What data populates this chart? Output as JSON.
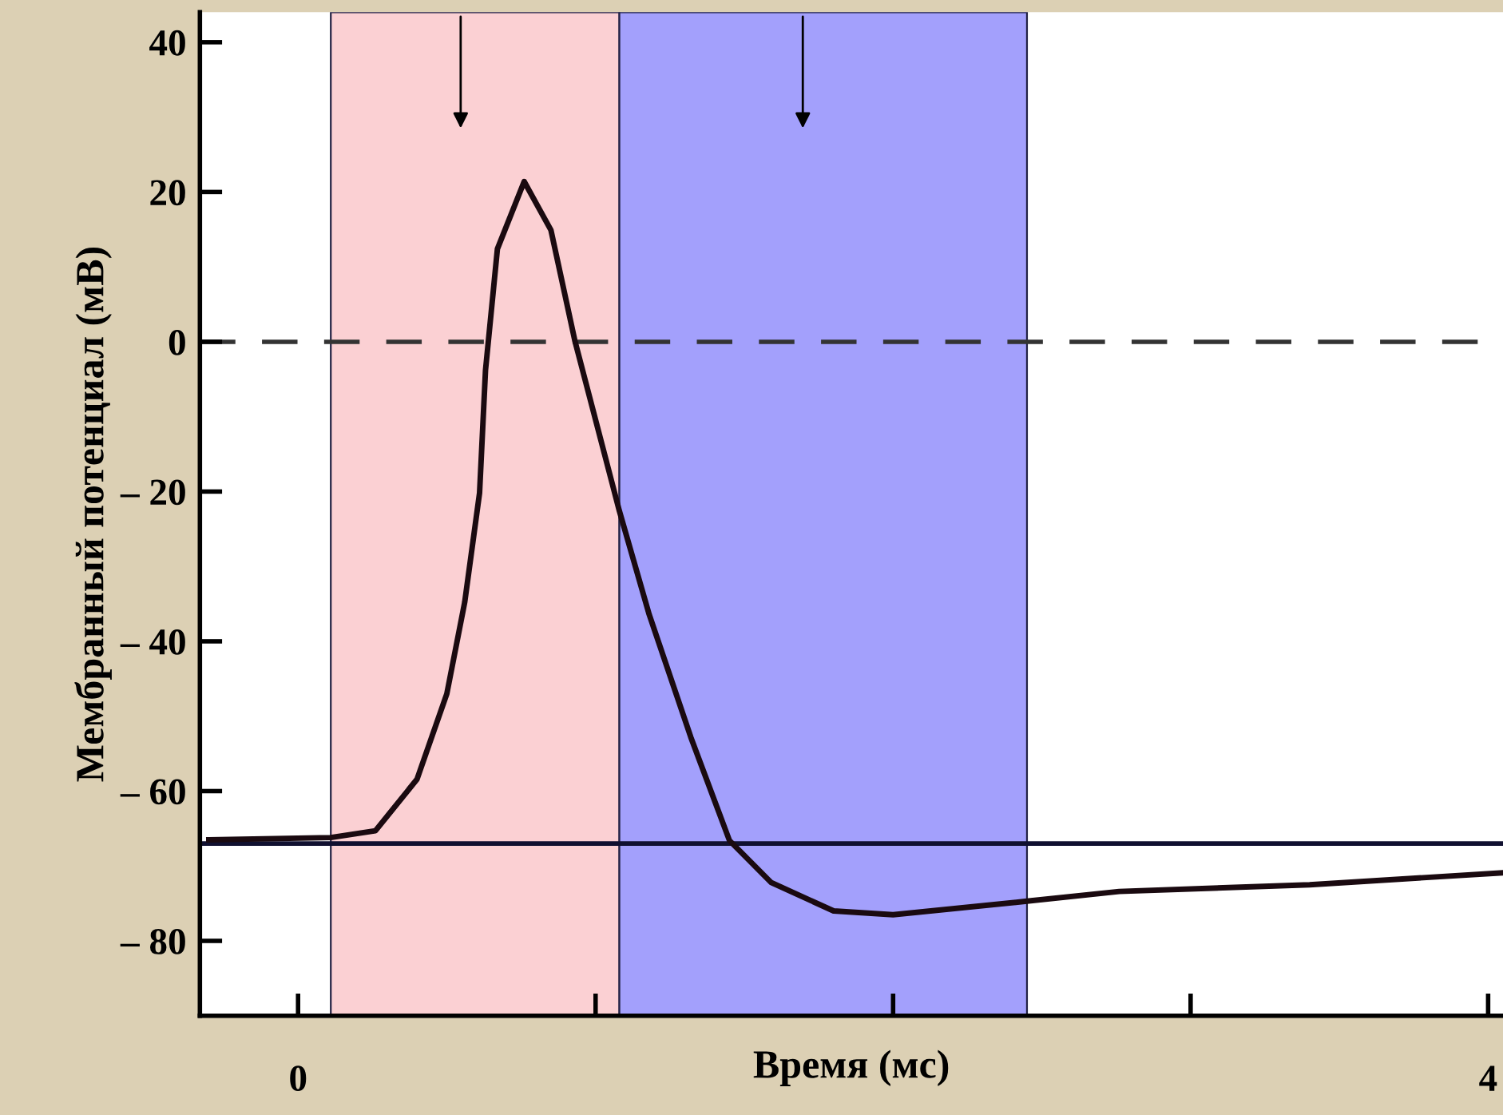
{
  "chart_data": {
    "type": "line",
    "xlabel": "Время (мс)",
    "ylabel": "Мембранный потенциал (мВ)",
    "xlim": [
      -0.33,
      4.05
    ],
    "ylim": [
      -90,
      44
    ],
    "xticks": [
      0,
      {
        "value": 1,
        "label": null
      },
      {
        "value": 2,
        "label": null
      },
      {
        "value": 3,
        "label": null
      },
      4
    ],
    "yticks": [
      40,
      20,
      0,
      {
        "value": -20,
        "label": "– 20"
      },
      {
        "value": -40,
        "label": "– 40"
      },
      {
        "value": -60,
        "label": "– 60"
      },
      {
        "value": -80,
        "label": "– 80"
      }
    ],
    "bands": [
      {
        "axis": "x",
        "from": 0.11,
        "to": 1.08,
        "color": "#fbd0d3"
      },
      {
        "axis": "x",
        "from": 1.08,
        "to": 2.45,
        "color": "#a3a0fc"
      }
    ],
    "ref_lines": [
      {
        "axis": "y",
        "value": 0,
        "color": "#333333",
        "line_style": "dashed"
      },
      {
        "axis": "y",
        "value": -67,
        "color": "#101030",
        "line_style": "solid"
      }
    ],
    "series": [
      {
        "color": "#1a0a10",
        "x": [
          -0.3,
          0.11,
          0.26,
          0.4,
          0.5,
          0.56,
          0.61,
          0.63,
          0.67,
          0.76,
          0.85,
          0.93,
          1.08,
          1.18,
          1.32,
          1.45,
          1.59,
          1.8,
          2.0,
          2.45,
          2.76,
          3.4,
          4.05
        ],
        "values": [
          -66.5,
          -66.2,
          -65.3,
          -58.4,
          -47,
          -34.8,
          -20.2,
          -3.8,
          12.4,
          21.4,
          14.9,
          0.2,
          -22.6,
          -36.4,
          -52.8,
          -66.6,
          -72.2,
          -76,
          -76.5,
          -74.7,
          -73.4,
          -72.5,
          -70.9
        ]
      }
    ],
    "grid": false,
    "legend": false,
    "marker": "none",
    "line_style": "solid"
  }
}
